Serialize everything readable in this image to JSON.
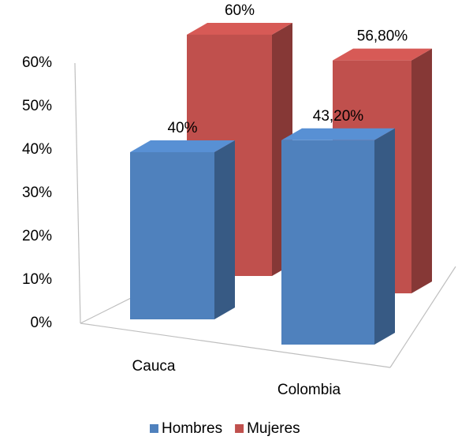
{
  "chart_data": {
    "type": "bar3d",
    "categories": [
      "Cauca",
      "Colombia"
    ],
    "series": [
      {
        "name": "Hombres",
        "color": "#4f81bd",
        "values": [
          40,
          43.2
        ],
        "value_labels": [
          "40%",
          "43,20%"
        ]
      },
      {
        "name": "Mujeres",
        "color": "#c0504d",
        "values": [
          60,
          56.8
        ],
        "value_labels": [
          "60%",
          "56,80%"
        ]
      }
    ],
    "ylim": [
      0,
      60
    ],
    "yticks": [
      {
        "value": 0,
        "label": "0%"
      },
      {
        "value": 10,
        "label": "10%"
      },
      {
        "value": 20,
        "label": "20%"
      },
      {
        "value": 30,
        "label": "30%"
      },
      {
        "value": 40,
        "label": "40%"
      },
      {
        "value": 50,
        "label": "50%"
      },
      {
        "value": 60,
        "label": "60%"
      }
    ],
    "legend": "bottom"
  }
}
